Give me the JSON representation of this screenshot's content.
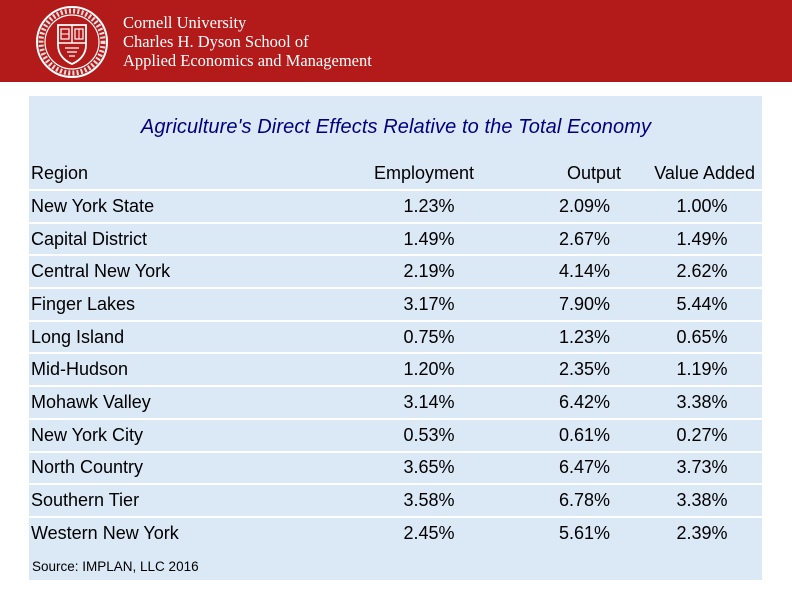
{
  "header": {
    "institution": "Cornell University",
    "school": "Charles H. Dyson School of",
    "department": "Applied Economics and Management",
    "logo_icon": "cornell-seal-icon",
    "accent_color": "#b31b1b"
  },
  "table": {
    "title": "Agriculture's Direct Effects Relative to the Total Economy",
    "title_color": "#000080",
    "panel_color": "#dbe8f6",
    "columns": {
      "region": "Region",
      "employment": "Employment",
      "output": "Output",
      "value_added": "Value Added"
    },
    "rows": [
      {
        "region": "New York State",
        "employment": "1.23%",
        "output": "2.09%",
        "value_added": "1.00%"
      },
      {
        "region": "Capital District",
        "employment": "1.49%",
        "output": "2.67%",
        "value_added": "1.49%"
      },
      {
        "region": "Central New York",
        "employment": "2.19%",
        "output": "4.14%",
        "value_added": "2.62%"
      },
      {
        "region": "Finger Lakes",
        "employment": "3.17%",
        "output": "7.90%",
        "value_added": "5.44%"
      },
      {
        "region": "Long Island",
        "employment": "0.75%",
        "output": "1.23%",
        "value_added": "0.65%"
      },
      {
        "region": "Mid-Hudson",
        "employment": "1.20%",
        "output": "2.35%",
        "value_added": "1.19%"
      },
      {
        "region": "Mohawk Valley",
        "employment": "3.14%",
        "output": "6.42%",
        "value_added": "3.38%"
      },
      {
        "region": "New York City",
        "employment": "0.53%",
        "output": "0.61%",
        "value_added": "0.27%"
      },
      {
        "region": "North Country",
        "employment": "3.65%",
        "output": "6.47%",
        "value_added": "3.73%"
      },
      {
        "region": "Southern Tier",
        "employment": "3.58%",
        "output": "6.78%",
        "value_added": "3.38%"
      },
      {
        "region": "Western New York",
        "employment": "2.45%",
        "output": "5.61%",
        "value_added": "2.39%"
      }
    ],
    "source": "Source: IMPLAN, LLC 2016"
  }
}
